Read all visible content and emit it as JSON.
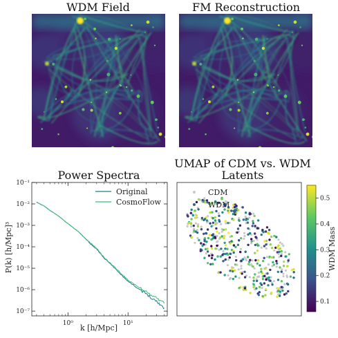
{
  "chart_data": [
    {
      "type": "heatmap",
      "title": "WDM Field",
      "colormap": "viridis"
    },
    {
      "type": "heatmap",
      "title": "FM Reconstruction",
      "colormap": "viridis"
    },
    {
      "type": "line",
      "title": "Power Spectra",
      "xlabel": "k [h/Mpc]",
      "ylabel": "P(k) [h/Mpc]³",
      "xscale": "log",
      "yscale": "log",
      "xlim": [
        0.25,
        45
      ],
      "ylim": [
        6e-08,
        0.1
      ],
      "xticks": [
        {
          "v": 1,
          "label": "10⁰"
        },
        {
          "v": 10,
          "label": "10¹"
        }
      ],
      "yticks": [
        {
          "v": 1e-07,
          "label": "10⁻⁷"
        },
        {
          "v": 1e-06,
          "label": "10⁻⁶"
        },
        {
          "v": 1e-05,
          "label": "10⁻⁵"
        },
        {
          "v": 0.0001,
          "label": "10⁻⁴"
        },
        {
          "v": 0.001,
          "label": "10⁻³"
        },
        {
          "v": 0.01,
          "label": "10⁻²"
        },
        {
          "v": 0.1,
          "label": "10⁻¹"
        }
      ],
      "legend_position": "top-right",
      "series": [
        {
          "name": "Original",
          "color": "#2a788e",
          "x": [
            0.3,
            0.4,
            0.5,
            0.7,
            1.0,
            1.5,
            2.0,
            2.5,
            3.0,
            4.0,
            6.0,
            8.0,
            10,
            15,
            20,
            30,
            40
          ],
          "y": [
            0.012,
            0.008,
            0.005,
            0.0027,
            0.0012,
            0.0005,
            0.00022,
            0.00012,
            8e-05,
            3e-05,
            1e-05,
            4.5e-06,
            2.5e-06,
            1.1e-06,
            6.5e-07,
            2.8e-07,
            1.4e-07
          ]
        },
        {
          "name": "CosmoFlow",
          "color": "#3dbc74",
          "x": [
            0.3,
            0.4,
            0.5,
            0.7,
            1.0,
            1.5,
            2.0,
            2.5,
            3.0,
            4.0,
            6.0,
            8.0,
            10,
            15,
            20,
            30,
            40
          ],
          "y": [
            0.012,
            0.008,
            0.005,
            0.0027,
            0.0012,
            0.0005,
            0.00023,
            0.00013,
            8.5e-05,
            3.2e-05,
            1.1e-05,
            5e-06,
            2.8e-06,
            1.3e-06,
            8e-07,
            4e-07,
            2.3e-07
          ]
        }
      ]
    },
    {
      "type": "scatter",
      "title": "UMAP of CDM vs. WDM Latents",
      "legend_position": "top-left",
      "series": [
        {
          "name": "CDM",
          "color": "#c8c8c8"
        },
        {
          "name": "WDM",
          "color": "#3b5f8a"
        }
      ],
      "colorbar": {
        "label": "WDM Mass",
        "colormap": "viridis",
        "range": [
          0.06,
          0.55
        ],
        "ticks": [
          "0.1",
          "0.2",
          "0.3",
          "0.4",
          "0.5"
        ]
      }
    }
  ]
}
